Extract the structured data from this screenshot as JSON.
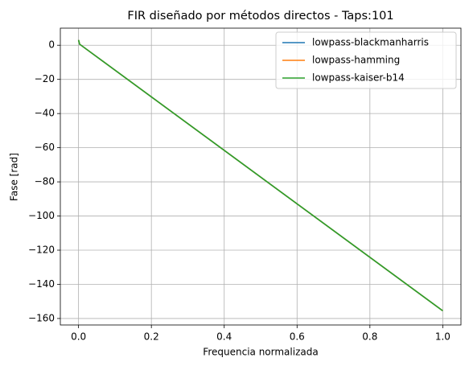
{
  "chart_data": {
    "type": "line",
    "title": "FIR diseñado por métodos directos - Taps:101",
    "xlabel": "Frequencia normalizada",
    "ylabel": "Fase [rad]",
    "x": [
      0,
      0.003,
      1
    ],
    "series": [
      {
        "name": "lowpass-blackmanharris",
        "color": "#1f77b4",
        "values": [
          3.1,
          0.6,
          -155.5
        ]
      },
      {
        "name": "lowpass-hamming",
        "color": "#ff7f0e",
        "values": [
          3.1,
          0.6,
          -155.5
        ]
      },
      {
        "name": "lowpass-kaiser-b14",
        "color": "#2ca02c",
        "values": [
          3.1,
          0.6,
          -155.5
        ]
      }
    ],
    "xlim": [
      -0.05,
      1.05
    ],
    "ylim": [
      -163.8,
      10
    ],
    "xticks": [
      {
        "value": 0,
        "label": "0.0"
      },
      {
        "value": 0.2,
        "label": "0.2"
      },
      {
        "value": 0.4,
        "label": "0.4"
      },
      {
        "value": 0.6,
        "label": "0.6"
      },
      {
        "value": 0.8,
        "label": "0.8"
      },
      {
        "value": 1,
        "label": "1.0"
      }
    ],
    "yticks": [
      {
        "value": -160,
        "label": "−160"
      },
      {
        "value": -140,
        "label": "−140"
      },
      {
        "value": -120,
        "label": "−120"
      },
      {
        "value": -100,
        "label": "−100"
      },
      {
        "value": -80,
        "label": "−80"
      },
      {
        "value": -60,
        "label": "−60"
      },
      {
        "value": -40,
        "label": "−40"
      },
      {
        "value": -20,
        "label": "−20"
      },
      0
    ],
    "grid": true,
    "legend": "upper right"
  }
}
